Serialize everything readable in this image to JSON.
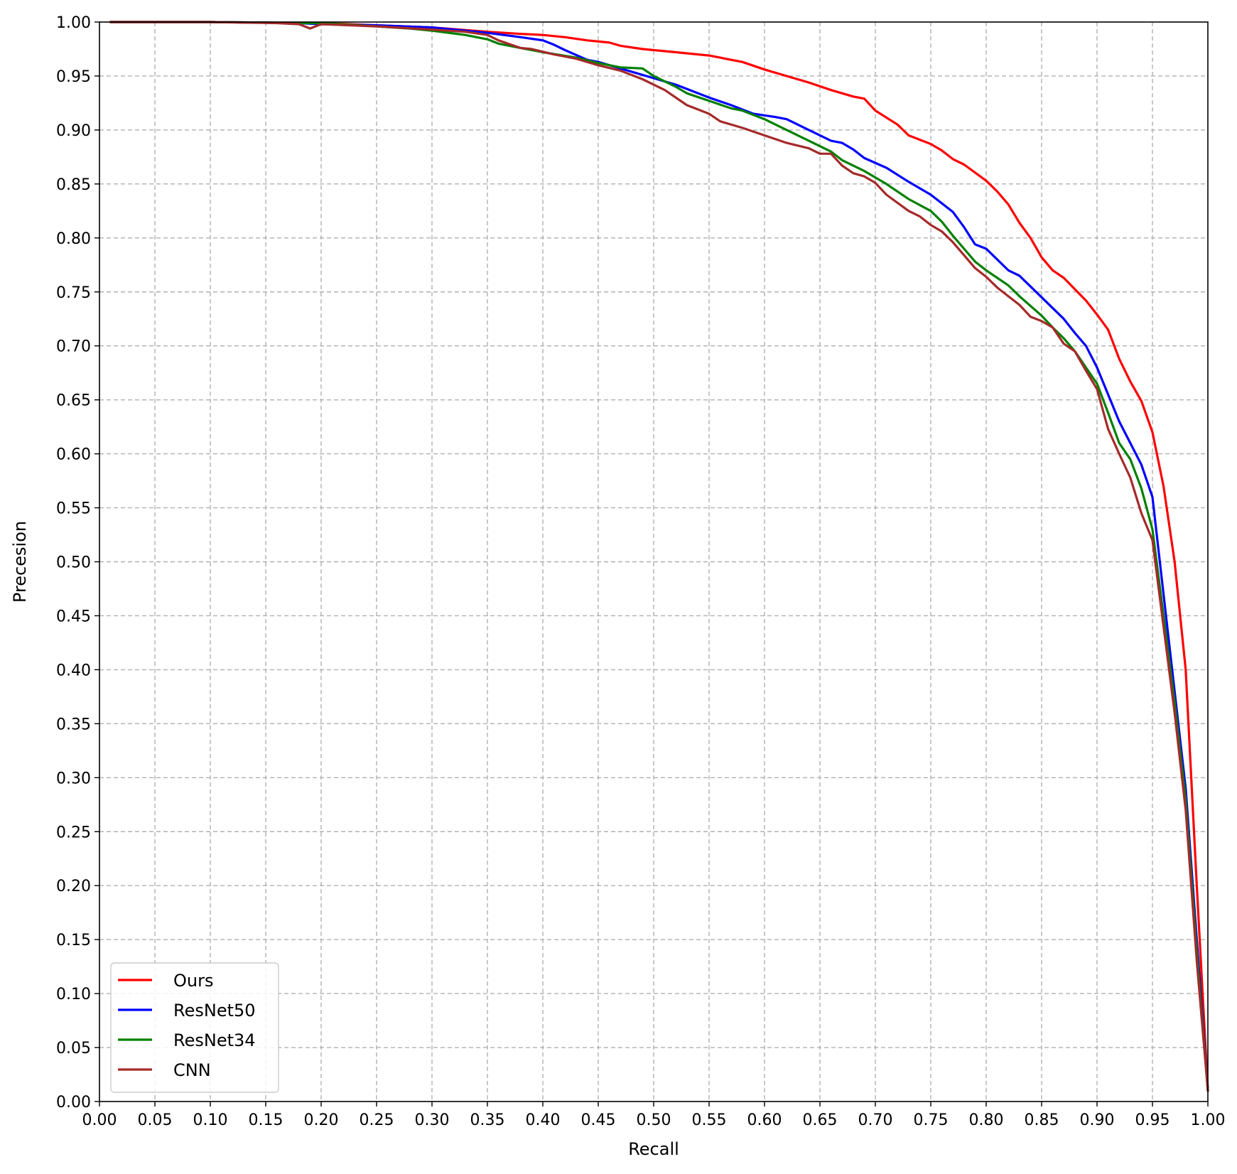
{
  "chart_data": {
    "type": "line",
    "title": "",
    "xlabel": "Recall",
    "ylabel": "Precesion",
    "xlim": [
      0,
      1
    ],
    "ylim": [
      0,
      1
    ],
    "xticks": [
      "0.00",
      "0.05",
      "0.10",
      "0.15",
      "0.20",
      "0.25",
      "0.30",
      "0.35",
      "0.40",
      "0.45",
      "0.50",
      "0.55",
      "0.60",
      "0.65",
      "0.70",
      "0.75",
      "0.80",
      "0.85",
      "0.90",
      "0.95",
      "1.00"
    ],
    "yticks": [
      "0.00",
      "0.05",
      "0.10",
      "0.15",
      "0.20",
      "0.25",
      "0.30",
      "0.35",
      "0.40",
      "0.45",
      "0.50",
      "0.55",
      "0.60",
      "0.65",
      "0.70",
      "0.75",
      "0.80",
      "0.85",
      "0.90",
      "0.95",
      "1.00"
    ],
    "grid": true,
    "legend_position": "lower-left",
    "series": [
      {
        "name": "Ours",
        "color": "#ff0000",
        "points": [
          [
            0.01,
            1.0
          ],
          [
            0.1,
            1.0
          ],
          [
            0.18,
            0.999
          ],
          [
            0.2,
            0.999
          ],
          [
            0.25,
            0.997
          ],
          [
            0.3,
            0.995
          ],
          [
            0.35,
            0.991
          ],
          [
            0.38,
            0.989
          ],
          [
            0.4,
            0.988
          ],
          [
            0.42,
            0.986
          ],
          [
            0.44,
            0.983
          ],
          [
            0.46,
            0.981
          ],
          [
            0.47,
            0.978
          ],
          [
            0.49,
            0.975
          ],
          [
            0.52,
            0.972
          ],
          [
            0.55,
            0.969
          ],
          [
            0.58,
            0.963
          ],
          [
            0.6,
            0.956
          ],
          [
            0.62,
            0.95
          ],
          [
            0.64,
            0.944
          ],
          [
            0.66,
            0.937
          ],
          [
            0.68,
            0.931
          ],
          [
            0.69,
            0.929
          ],
          [
            0.7,
            0.918
          ],
          [
            0.72,
            0.905
          ],
          [
            0.73,
            0.895
          ],
          [
            0.75,
            0.887
          ],
          [
            0.76,
            0.881
          ],
          [
            0.77,
            0.873
          ],
          [
            0.78,
            0.868
          ],
          [
            0.8,
            0.853
          ],
          [
            0.81,
            0.843
          ],
          [
            0.82,
            0.831
          ],
          [
            0.83,
            0.814
          ],
          [
            0.84,
            0.8
          ],
          [
            0.85,
            0.782
          ],
          [
            0.86,
            0.77
          ],
          [
            0.87,
            0.763
          ],
          [
            0.89,
            0.742
          ],
          [
            0.9,
            0.729
          ],
          [
            0.91,
            0.715
          ],
          [
            0.92,
            0.688
          ],
          [
            0.93,
            0.667
          ],
          [
            0.94,
            0.649
          ],
          [
            0.95,
            0.62
          ],
          [
            0.96,
            0.57
          ],
          [
            0.97,
            0.5
          ],
          [
            0.98,
            0.4
          ],
          [
            0.99,
            0.2
          ],
          [
            1.0,
            0.01
          ]
        ]
      },
      {
        "name": "ResNet50",
        "color": "#0000ff",
        "points": [
          [
            0.01,
            1.0
          ],
          [
            0.1,
            1.0
          ],
          [
            0.18,
            0.999
          ],
          [
            0.2,
            0.998
          ],
          [
            0.25,
            0.997
          ],
          [
            0.3,
            0.995
          ],
          [
            0.35,
            0.99
          ],
          [
            0.38,
            0.986
          ],
          [
            0.4,
            0.983
          ],
          [
            0.41,
            0.979
          ],
          [
            0.42,
            0.974
          ],
          [
            0.44,
            0.965
          ],
          [
            0.45,
            0.963
          ],
          [
            0.47,
            0.957
          ],
          [
            0.5,
            0.948
          ],
          [
            0.52,
            0.942
          ],
          [
            0.55,
            0.93
          ],
          [
            0.57,
            0.923
          ],
          [
            0.59,
            0.915
          ],
          [
            0.61,
            0.912
          ],
          [
            0.62,
            0.91
          ],
          [
            0.64,
            0.9
          ],
          [
            0.66,
            0.89
          ],
          [
            0.67,
            0.888
          ],
          [
            0.68,
            0.882
          ],
          [
            0.69,
            0.874
          ],
          [
            0.71,
            0.865
          ],
          [
            0.73,
            0.852
          ],
          [
            0.75,
            0.84
          ],
          [
            0.77,
            0.824
          ],
          [
            0.78,
            0.81
          ],
          [
            0.79,
            0.794
          ],
          [
            0.8,
            0.79
          ],
          [
            0.82,
            0.77
          ],
          [
            0.83,
            0.765
          ],
          [
            0.85,
            0.745
          ],
          [
            0.87,
            0.725
          ],
          [
            0.88,
            0.712
          ],
          [
            0.89,
            0.7
          ],
          [
            0.9,
            0.68
          ],
          [
            0.91,
            0.655
          ],
          [
            0.92,
            0.63
          ],
          [
            0.93,
            0.61
          ],
          [
            0.94,
            0.59
          ],
          [
            0.95,
            0.56
          ],
          [
            0.96,
            0.47
          ],
          [
            0.97,
            0.38
          ],
          [
            0.98,
            0.29
          ],
          [
            0.99,
            0.15
          ],
          [
            1.0,
            0.01
          ]
        ]
      },
      {
        "name": "ResNet34",
        "color": "#008000",
        "points": [
          [
            0.01,
            1.0
          ],
          [
            0.1,
            1.0
          ],
          [
            0.18,
            0.999
          ],
          [
            0.2,
            0.999
          ],
          [
            0.25,
            0.996
          ],
          [
            0.28,
            0.994
          ],
          [
            0.3,
            0.992
          ],
          [
            0.33,
            0.988
          ],
          [
            0.35,
            0.984
          ],
          [
            0.36,
            0.98
          ],
          [
            0.38,
            0.976
          ],
          [
            0.4,
            0.972
          ],
          [
            0.43,
            0.967
          ],
          [
            0.45,
            0.962
          ],
          [
            0.47,
            0.958
          ],
          [
            0.49,
            0.957
          ],
          [
            0.5,
            0.95
          ],
          [
            0.52,
            0.94
          ],
          [
            0.53,
            0.934
          ],
          [
            0.55,
            0.927
          ],
          [
            0.57,
            0.92
          ],
          [
            0.58,
            0.918
          ],
          [
            0.6,
            0.91
          ],
          [
            0.62,
            0.9
          ],
          [
            0.64,
            0.89
          ],
          [
            0.66,
            0.88
          ],
          [
            0.67,
            0.872
          ],
          [
            0.69,
            0.862
          ],
          [
            0.71,
            0.85
          ],
          [
            0.73,
            0.836
          ],
          [
            0.75,
            0.825
          ],
          [
            0.76,
            0.815
          ],
          [
            0.77,
            0.802
          ],
          [
            0.78,
            0.79
          ],
          [
            0.79,
            0.778
          ],
          [
            0.8,
            0.77
          ],
          [
            0.82,
            0.756
          ],
          [
            0.83,
            0.746
          ],
          [
            0.85,
            0.728
          ],
          [
            0.86,
            0.717
          ],
          [
            0.87,
            0.707
          ],
          [
            0.88,
            0.695
          ],
          [
            0.89,
            0.68
          ],
          [
            0.9,
            0.665
          ],
          [
            0.91,
            0.638
          ],
          [
            0.92,
            0.61
          ],
          [
            0.93,
            0.595
          ],
          [
            0.94,
            0.568
          ],
          [
            0.95,
            0.53
          ],
          [
            0.96,
            0.45
          ],
          [
            0.97,
            0.37
          ],
          [
            0.98,
            0.28
          ],
          [
            0.99,
            0.14
          ],
          [
            1.0,
            0.01
          ]
        ]
      },
      {
        "name": "CNN",
        "color": "#a52a2a",
        "points": [
          [
            0.01,
            1.0
          ],
          [
            0.1,
            1.0
          ],
          [
            0.16,
            0.999
          ],
          [
            0.18,
            0.998
          ],
          [
            0.19,
            0.994
          ],
          [
            0.2,
            0.998
          ],
          [
            0.25,
            0.996
          ],
          [
            0.3,
            0.993
          ],
          [
            0.33,
            0.991
          ],
          [
            0.35,
            0.988
          ],
          [
            0.36,
            0.983
          ],
          [
            0.38,
            0.976
          ],
          [
            0.39,
            0.975
          ],
          [
            0.41,
            0.97
          ],
          [
            0.43,
            0.966
          ],
          [
            0.45,
            0.96
          ],
          [
            0.47,
            0.955
          ],
          [
            0.49,
            0.947
          ],
          [
            0.51,
            0.937
          ],
          [
            0.53,
            0.923
          ],
          [
            0.54,
            0.919
          ],
          [
            0.55,
            0.915
          ],
          [
            0.56,
            0.908
          ],
          [
            0.58,
            0.902
          ],
          [
            0.6,
            0.895
          ],
          [
            0.62,
            0.888
          ],
          [
            0.64,
            0.883
          ],
          [
            0.65,
            0.878
          ],
          [
            0.66,
            0.878
          ],
          [
            0.67,
            0.867
          ],
          [
            0.68,
            0.86
          ],
          [
            0.69,
            0.857
          ],
          [
            0.7,
            0.851
          ],
          [
            0.71,
            0.84
          ],
          [
            0.73,
            0.825
          ],
          [
            0.74,
            0.82
          ],
          [
            0.75,
            0.812
          ],
          [
            0.76,
            0.806
          ],
          [
            0.77,
            0.796
          ],
          [
            0.78,
            0.784
          ],
          [
            0.79,
            0.772
          ],
          [
            0.8,
            0.764
          ],
          [
            0.81,
            0.754
          ],
          [
            0.83,
            0.738
          ],
          [
            0.84,
            0.727
          ],
          [
            0.85,
            0.723
          ],
          [
            0.86,
            0.717
          ],
          [
            0.87,
            0.702
          ],
          [
            0.88,
            0.695
          ],
          [
            0.89,
            0.677
          ],
          [
            0.9,
            0.66
          ],
          [
            0.91,
            0.623
          ],
          [
            0.92,
            0.6
          ],
          [
            0.93,
            0.578
          ],
          [
            0.94,
            0.545
          ],
          [
            0.95,
            0.52
          ],
          [
            0.96,
            0.44
          ],
          [
            0.97,
            0.36
          ],
          [
            0.98,
            0.27
          ],
          [
            0.99,
            0.13
          ],
          [
            1.0,
            0.01
          ]
        ]
      }
    ]
  }
}
